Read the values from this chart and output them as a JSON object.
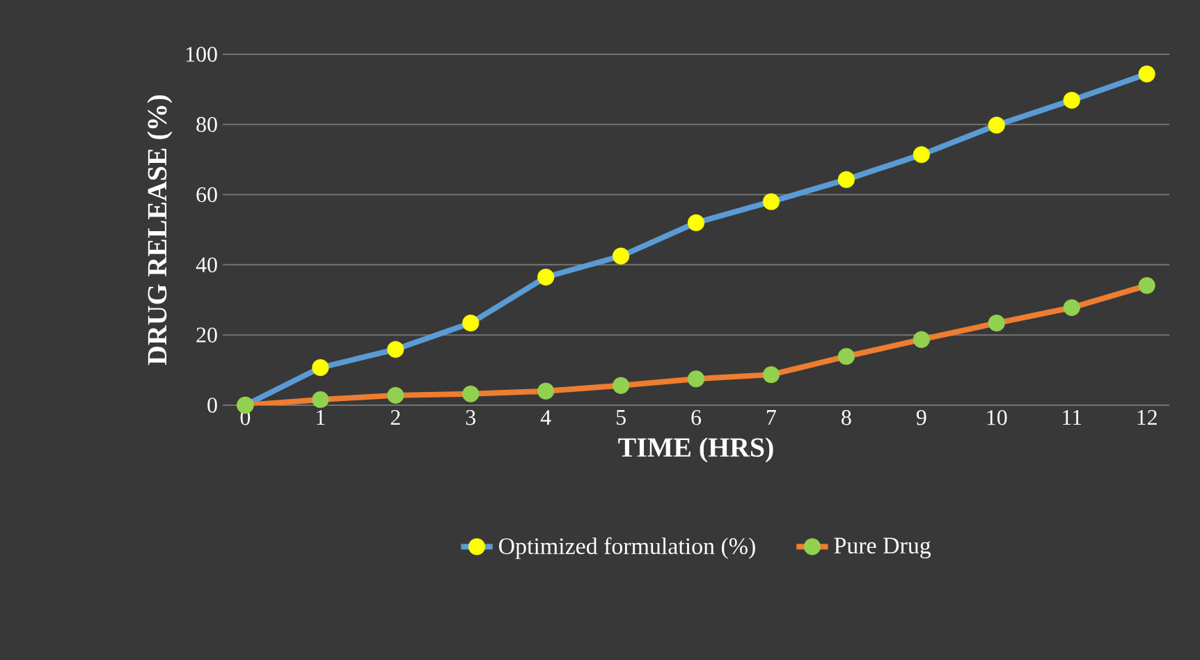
{
  "chart_data": {
    "type": "line",
    "xlabel": "TIME (HRS)",
    "ylabel": "DRUG RELEASE (%)",
    "categories": [
      "0",
      "1",
      "2",
      "3",
      "4",
      "5",
      "6",
      "7",
      "8",
      "9",
      "10",
      "11",
      "12"
    ],
    "series": [
      {
        "name": "Optimized formulation (%)",
        "color": "#5b9bd5",
        "values": [
          0,
          10.7,
          15.9,
          23.4,
          36.5,
          42.5,
          52,
          58,
          64.3,
          71.4,
          79.8,
          86.9,
          94.4
        ]
      },
      {
        "name": "Pure Drug",
        "color": "#ed7d31",
        "values": [
          0,
          1.6,
          2.8,
          3.2,
          4,
          5.6,
          7.5,
          8.7,
          13.9,
          18.7,
          23.4,
          27.8,
          34.1
        ]
      }
    ],
    "ylim": [
      0,
      100
    ],
    "yticks": [
      0,
      20,
      40,
      60,
      80,
      100
    ],
    "grid": "y",
    "legend": "bottom",
    "marker": "circle",
    "line_style": "solid"
  }
}
